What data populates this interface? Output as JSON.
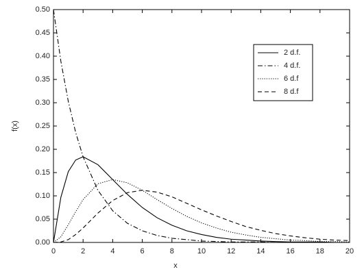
{
  "chart_data": {
    "type": "line",
    "xlabel": "x",
    "ylabel": "f(x)",
    "x": [
      0,
      0.5,
      1,
      1.5,
      2,
      3,
      4,
      5,
      6,
      7,
      8,
      9,
      10,
      11,
      12,
      13,
      14,
      15,
      16,
      17,
      18,
      19,
      20
    ],
    "series": [
      {
        "name": "2 d.f.",
        "color": "#000000",
        "style": "solid",
        "values": [
          0,
          0.097,
          0.152,
          0.177,
          0.184,
          0.167,
          0.135,
          0.103,
          0.075,
          0.053,
          0.037,
          0.025,
          0.017,
          0.011,
          0.007,
          0.005,
          0.003,
          0.002,
          0.001,
          0.001,
          0.001,
          0,
          0
        ]
      },
      {
        "name": "4 d.f.",
        "color": "#000000",
        "style": "dashdot",
        "values": [
          0.5,
          0.389,
          0.303,
          0.236,
          0.184,
          0.112,
          0.068,
          0.041,
          0.025,
          0.015,
          0.009,
          0.006,
          0.003,
          0.002,
          0.001,
          0.001,
          0.001,
          0,
          0,
          0,
          0,
          0,
          0
        ]
      },
      {
        "name": "6 d.f",
        "color": "#000000",
        "style": "dotted",
        "values": [
          0,
          0.012,
          0.038,
          0.066,
          0.092,
          0.126,
          0.135,
          0.128,
          0.112,
          0.092,
          0.073,
          0.056,
          0.042,
          0.031,
          0.022,
          0.016,
          0.011,
          0.008,
          0.005,
          0.004,
          0.002,
          0.002,
          0.001
        ]
      },
      {
        "name": "8 d.f",
        "color": "#000000",
        "style": "dashed",
        "values": [
          0,
          0.001,
          0.006,
          0.017,
          0.031,
          0.063,
          0.09,
          0.107,
          0.112,
          0.108,
          0.098,
          0.084,
          0.07,
          0.057,
          0.045,
          0.034,
          0.026,
          0.019,
          0.014,
          0.01,
          0.007,
          0.005,
          0.004
        ]
      }
    ],
    "xlim": [
      0,
      20
    ],
    "xticks": [
      0,
      2,
      4,
      6,
      8,
      10,
      12,
      14,
      16,
      18,
      20
    ],
    "ylim": [
      0,
      0.5
    ],
    "yticks": [
      {
        "value": 0,
        "label": "0.00"
      },
      {
        "value": 0.05,
        "label": "0.05"
      },
      {
        "value": 0.1,
        "label": "0.10"
      },
      {
        "value": 0.15,
        "label": "0.15"
      },
      {
        "value": 0.2,
        "label": "0.20"
      },
      {
        "value": 0.25,
        "label": "0.25"
      },
      {
        "value": 0.3,
        "label": "0.30"
      },
      {
        "value": 0.35,
        "label": "0.35"
      },
      {
        "value": 0.4,
        "label": "0.40"
      },
      {
        "value": 0.45,
        "label": "0.45"
      },
      {
        "value": 0.5,
        "label": "0.50"
      }
    ],
    "grid": false,
    "legend": "upper right"
  }
}
